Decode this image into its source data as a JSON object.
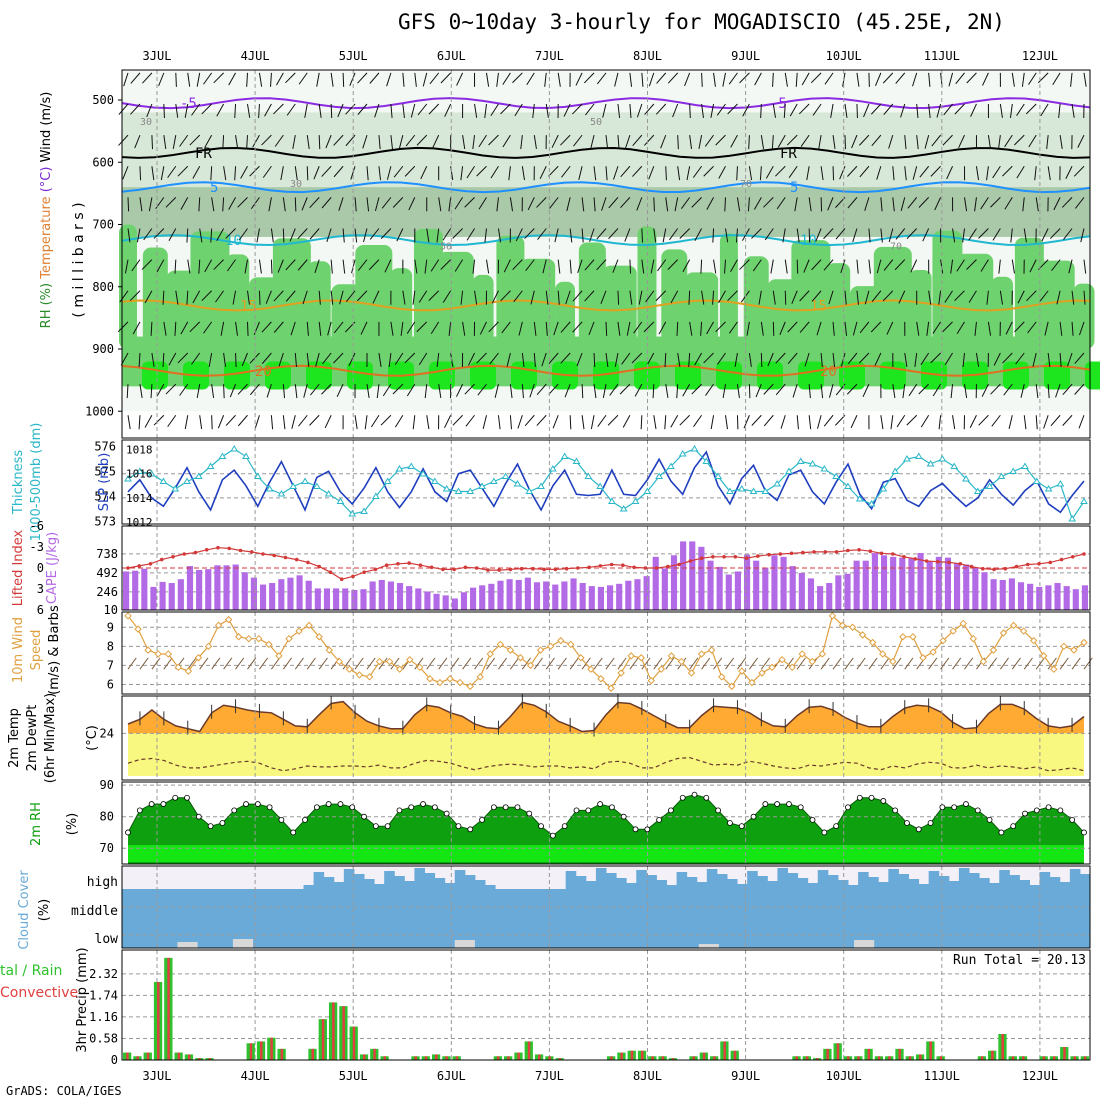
{
  "title": "GFS 0~10day 3-hourly for MOGADISCIO (45.25E, 2N)",
  "credit": "GrADS: COLA/IGES",
  "colors": {
    "rh_light": "#d8e8d8",
    "rh_mid": "#a9c9a9",
    "rh_green": "#6ed36e",
    "rh_bright": "#1ee61e",
    "slp": "#1f3fbf",
    "thk": "#2ab7c7",
    "cape": "#b36ae6",
    "li": "#d23a3a",
    "wind": "#e0a040",
    "temp_fill": "#ffaa33",
    "dew_fill": "#f8f880",
    "rh2m": "#0ea00e",
    "rh2m_bright": "#14e614",
    "cloud": "#6aaad8",
    "precip_total": "#2ec22e",
    "precip_conv": "#e04040"
  },
  "chart_data": [
    {
      "type": "heatmap",
      "panel": "upper_air",
      "ylabel_parts": [
        "RH (%)",
        "Temperature",
        "(°C)",
        "Wind",
        "(m/s)"
      ],
      "ylabel2": "( m i l l i b a r s )",
      "yticks": [
        500,
        600,
        700,
        800,
        900,
        1000
      ],
      "ylim": [
        1000,
        450
      ],
      "xticks": [
        "3JUL",
        "4JUL",
        "5JUL",
        "6JUL",
        "7JUL",
        "8JUL",
        "9JUL",
        "10JUL",
        "11JUL",
        "12JUL"
      ],
      "contour_labels": [
        "-5",
        "-5",
        "FR",
        "FR",
        "5",
        "5",
        "10",
        "15",
        "15",
        "20",
        "20",
        "30",
        "30",
        "50",
        "50",
        "70",
        "70"
      ],
      "isotherms": [
        {
          "label": "-5",
          "p": 505
        },
        {
          "label": "FR",
          "p": 585
        },
        {
          "label": "5",
          "p": 640
        },
        {
          "label": "10",
          "p": 725
        },
        {
          "label": "15",
          "p": 830
        },
        {
          "label": "20",
          "p": 935
        }
      ]
    },
    {
      "type": "line",
      "panel": "slp_thickness",
      "ylabel_left": "Thickness 1000-500mb (dm)",
      "ylabel_right": "SLP (mb)",
      "yticks_left": [
        573,
        574,
        575,
        576
      ],
      "yticks_right": [
        1012,
        1014,
        1016,
        1018
      ],
      "series": [
        {
          "name": "SLP",
          "values": [
            1014.5,
            1015.5,
            1014,
            1013.3,
            1014.8,
            1016.5,
            1014.5,
            1013,
            1015.5,
            1016.3,
            1015,
            1013.3,
            1015.3,
            1017,
            1015,
            1013,
            1015.7,
            1016.2,
            1014.5,
            1013.5,
            1014.8,
            1016.5,
            1014.5,
            1013.2,
            1014.5,
            1016.4,
            1014.5,
            1013.7,
            1016,
            1016.3,
            1014.8,
            1013.3,
            1015.2,
            1016.8,
            1014.7,
            1013,
            1015,
            1016.3,
            1014.3,
            1014.2,
            1014.3,
            1016.3,
            1014.3,
            1014.2,
            1015.5,
            1017.2,
            1015.4,
            1014.3,
            1016.5,
            1017.8,
            1015,
            1013.5,
            1015.6,
            1016.7,
            1014.6,
            1013.8,
            1015.9,
            1016.3,
            1014.5,
            1013.5,
            1015.3,
            1016.8,
            1014.3,
            1013.1,
            1015.3,
            1015.6,
            1013.8,
            1013.3,
            1014.6,
            1015.2,
            1014.2,
            1013.3,
            1014,
            1015.5,
            1014.3,
            1013.4,
            1014.6,
            1015.4,
            1013.5,
            1012.8,
            1014.2,
            1015.4
          ]
        },
        {
          "name": "Thickness",
          "values": [
            574.7,
            575,
            574.9,
            574.6,
            574.3,
            574.6,
            574.8,
            575.2,
            575.6,
            575.9,
            575.6,
            574.8,
            574.3,
            574.1,
            574.4,
            574.6,
            574.4,
            574.1,
            573.8,
            573.3,
            573.4,
            574,
            574.6,
            575.1,
            575.2,
            574.9,
            574.6,
            574.3,
            574.2,
            574.2,
            574.4,
            574.6,
            574.8,
            574.5,
            574.2,
            574.4,
            575.1,
            575.6,
            575.4,
            574.8,
            574.4,
            573.8,
            573.5,
            573.8,
            574.2,
            574.8,
            575.2,
            575.7,
            575.9,
            575.4,
            574.8,
            574.2,
            574.3,
            574.2,
            574.2,
            574.5,
            575,
            575.4,
            575.3,
            575.1,
            574.8,
            574.4,
            573.9,
            573.7,
            574.3,
            575,
            575.5,
            575.6,
            575.3,
            575.5,
            575.2,
            574.7,
            574.2,
            574.4,
            574.8,
            575,
            575.2,
            574.6,
            574.3,
            574.5,
            573.1,
            573.8
          ]
        }
      ]
    },
    {
      "type": "bar",
      "panel": "cape_li",
      "ylabel_left": "Lifted Index",
      "ylabel_right": "CAPE (J/kg)",
      "yticks_left": [
        -6,
        -3,
        0,
        3,
        6
      ],
      "yticks_right": [
        10,
        246,
        492,
        738
      ],
      "series": [
        {
          "name": "CAPE",
          "values": [
            510,
            520,
            545,
            310,
            375,
            360,
            410,
            580,
            530,
            540,
            590,
            590,
            600,
            500,
            430,
            340,
            360,
            410,
            430,
            460,
            390,
            290,
            290,
            290,
            290,
            270,
            280,
            380,
            400,
            380,
            360,
            320,
            290,
            250,
            220,
            200,
            160,
            240,
            300,
            330,
            350,
            390,
            410,
            400,
            430,
            370,
            380,
            340,
            380,
            420,
            360,
            320,
            310,
            330,
            350,
            390,
            410,
            450,
            700,
            550,
            720,
            900,
            900,
            830,
            650,
            570,
            470,
            510,
            730,
            650,
            560,
            720,
            700,
            580,
            490,
            420,
            320,
            360,
            460,
            480,
            650,
            650,
            750,
            720,
            700,
            690,
            680,
            750,
            640,
            700,
            690,
            620,
            600,
            560,
            500,
            410,
            400,
            420,
            370,
            350,
            310,
            330,
            360,
            320,
            280,
            330
          ]
        },
        {
          "name": "Lifted Index",
          "values": [
            0,
            -0.3,
            -0.6,
            -1.2,
            -1.6,
            -2,
            -2.2,
            -2.6,
            -2.9,
            -2.8,
            -2.5,
            -2.3,
            -2,
            -1.8,
            -1.5,
            -1.2,
            -0.8,
            -0.2,
            0.6,
            1.6,
            1.2,
            0.6,
            0.2,
            -0.4,
            -0.6,
            -0.7,
            -0.4,
            -0.1,
            0.2,
            0.2,
            -0.1,
            0,
            0.3,
            0.3,
            0.2,
            0.1,
            0.1,
            0.2,
            0.2,
            0.1,
            0,
            -0.1,
            -0.3,
            -0.5,
            -0.4,
            -0.1,
            0,
            0,
            -0.2,
            -0.5,
            -1,
            -1.4,
            -1.6,
            -1.6,
            -1.6,
            -1.4,
            -1.7,
            -1.9,
            -2,
            -2.1,
            -2.2,
            -2.3,
            -2.3,
            -2.3,
            -2.5,
            -2.6,
            -2.4,
            -2.1,
            -2,
            -1.6,
            -1.3,
            -1,
            -0.9,
            -0.8,
            -0.6,
            -0.2,
            0.1,
            0.2,
            0.1,
            -0.2,
            -0.5,
            -0.6,
            -0.8,
            -1.2,
            -1.6,
            -2
          ]
        }
      ]
    },
    {
      "type": "line",
      "panel": "wind10m",
      "ylabel": "10m Wind Speed (m/s) & Barbs",
      "yticks": [
        6,
        7,
        8,
        9
      ],
      "ylim": [
        5.5,
        9.8
      ],
      "series": [
        {
          "name": "10m Wind",
          "values": [
            9.6,
            8.9,
            7.8,
            7.6,
            7.6,
            6.9,
            6.7,
            7.4,
            8,
            9.1,
            9.4,
            8.5,
            8.4,
            8.4,
            8.1,
            7.5,
            8.4,
            8.8,
            9.1,
            8.5,
            7.8,
            7.2,
            6.8,
            6.5,
            6.4,
            7.2,
            7.2,
            6.8,
            7.3,
            6.9,
            6.3,
            6.1,
            6.3,
            6.1,
            5.9,
            6.4,
            7.6,
            8.1,
            7.8,
            7.4,
            7,
            7.8,
            8,
            8.3,
            8.1,
            7.4,
            6.8,
            6.3,
            5.8,
            6.6,
            7.5,
            7.4,
            6.2,
            6.8,
            7.5,
            7.2,
            6.6,
            7.6,
            7.8,
            6.4,
            5.9,
            6.7,
            6.1,
            6.6,
            6.9,
            7.3,
            6.9,
            7.6,
            7.2,
            7.6,
            9.6,
            9.1,
            9,
            8.6,
            8.2,
            7.6,
            7.2,
            8.5,
            8.5,
            7.4,
            7.7,
            8.3,
            8.8,
            9.2,
            8.4,
            7.2,
            7.8,
            8.7,
            9.1,
            8.8,
            8.3,
            7.5,
            6.8,
            8,
            7.8,
            8.2
          ]
        }
      ]
    },
    {
      "type": "area",
      "panel": "temp2m",
      "ylabel": "2m Temp 2m DewPt (6hr Min/Max) (°C)",
      "yticks": [
        24
      ],
      "ylim": [
        19,
        28
      ],
      "series": [
        {
          "name": "2m Temp",
          "values": [
            25,
            25.5,
            26.5,
            25.5,
            24.8,
            24.5,
            24.2,
            26.2,
            27,
            26.8,
            26.5,
            26.3,
            26.2,
            25.5,
            24.8,
            24.7,
            26,
            27.2,
            27.4,
            26.2,
            25.3,
            24.8,
            24.5,
            24.5,
            26,
            27,
            26.8,
            26.2,
            25.8,
            25,
            24.6,
            24.5,
            25.8,
            27.3,
            27,
            26.3,
            25.3,
            24.8,
            24.2,
            24.3,
            26,
            27.3,
            27.2,
            26.6,
            25.9,
            25.2,
            24.6,
            24.6,
            25.9,
            26.9,
            26.8,
            26.7,
            26.2,
            25.4,
            24.8,
            24.7,
            25.9,
            26.8,
            26.9,
            26.5,
            25.7,
            25.1,
            24.7,
            24.7,
            25.8,
            26.7,
            27,
            26.9,
            26.3,
            25.2,
            24.5,
            24.6,
            26.1,
            27.1,
            27.1,
            26.6,
            25.6,
            24.8,
            24.6,
            24.8,
            25.8
          ]
        },
        {
          "name": "2m DewPt",
          "values": [
            20.8,
            21.2,
            21.3,
            21.1,
            20.6,
            20.3,
            20.3,
            20.5,
            20.7,
            20.9,
            21,
            20.8,
            20.3,
            20,
            20.2,
            20.5,
            20.4,
            20.4,
            20.5,
            20.5,
            20.4,
            20.6,
            20.3,
            20.3,
            20.8,
            21.1,
            21,
            20.8,
            20.4,
            20.1,
            20.4,
            20.6,
            20.7,
            20.6,
            20.4,
            20.5,
            20.5,
            20.3,
            20.4,
            20.2,
            20.9,
            21,
            20.8,
            20.3,
            20.3,
            20.9,
            21.3,
            21.4,
            21,
            20.6,
            20.7,
            20.6,
            21,
            20.8,
            20.5,
            20.3,
            20.2,
            20.6,
            20.5,
            20.7,
            20.9,
            20.8,
            20.3,
            20.1,
            20.5,
            20.3,
            20.7,
            20.9,
            20.8,
            20.3,
            20.3,
            20.6,
            20.3,
            20.5,
            20.4,
            20.2,
            20.4,
            20,
            20.1,
            20.3,
            20
          ]
        }
      ]
    },
    {
      "type": "area",
      "panel": "rh2m",
      "ylabel": "2m RH (%)",
      "yticks": [
        70,
        80,
        90
      ],
      "ylim": [
        65,
        91
      ],
      "series": [
        {
          "name": "2m RH",
          "values": [
            75,
            82,
            84,
            84,
            86,
            86,
            80,
            77,
            78,
            82,
            84,
            84,
            83,
            79,
            75,
            79,
            83,
            84,
            84,
            83,
            80,
            77,
            77,
            82,
            83,
            84,
            83,
            81,
            77,
            76,
            79,
            83,
            83,
            83,
            81,
            77,
            74,
            77,
            82,
            82,
            84,
            83,
            80,
            76,
            76,
            79,
            82,
            86,
            87,
            86,
            82,
            78,
            77,
            80,
            84,
            84,
            84,
            83,
            79,
            75,
            77,
            83,
            86,
            86,
            85,
            82,
            78,
            76,
            78,
            83,
            83,
            84,
            82,
            79,
            75,
            77,
            81,
            82,
            83,
            82,
            79,
            75
          ]
        }
      ]
    },
    {
      "type": "heatmap",
      "panel": "cloud",
      "ylabel": "Cloud Cover (%)",
      "yticklabels": [
        "high",
        "middle",
        "low"
      ]
    },
    {
      "type": "bar",
      "panel": "precip",
      "ylabel": "3hr Precip (mm)",
      "ylabel_left_parts": [
        "tal / Rain",
        "Convective"
      ],
      "annotation": "Run Total = 20.13",
      "yticks": [
        0,
        0.58,
        1.16,
        1.74,
        2.32
      ],
      "ylim": [
        0,
        2.8
      ],
      "series": [
        {
          "name": "Total / Rain",
          "values": [
            0.2,
            0.1,
            0.2,
            2.1,
            2.75,
            0.2,
            0.15,
            0.05,
            0.05,
            0,
            0,
            0,
            0.45,
            0.5,
            0.6,
            0.3,
            0,
            0,
            0.3,
            1.1,
            1.55,
            1.45,
            0.9,
            0.15,
            0.3,
            0.1,
            0,
            0,
            0.1,
            0.1,
            0.15,
            0.1,
            0.1,
            0,
            0,
            0,
            0.1,
            0.1,
            0.2,
            0.5,
            0.15,
            0.1,
            0.05,
            0,
            0,
            0,
            0,
            0.1,
            0.2,
            0.25,
            0.25,
            0.1,
            0.1,
            0.05,
            0,
            0.1,
            0.2,
            0.1,
            0.5,
            0.25,
            0,
            0,
            0,
            0,
            0,
            0.1,
            0.1,
            0.05,
            0.3,
            0.45,
            0.1,
            0.1,
            0.3,
            0.1,
            0.1,
            0.3,
            0.1,
            0.15,
            0.5,
            0.1,
            0,
            0,
            0,
            0.1,
            0.25,
            0.7,
            0.1,
            0.1,
            0,
            0.1,
            0.1,
            0.35,
            0.1,
            0.1
          ]
        }
      ]
    }
  ]
}
